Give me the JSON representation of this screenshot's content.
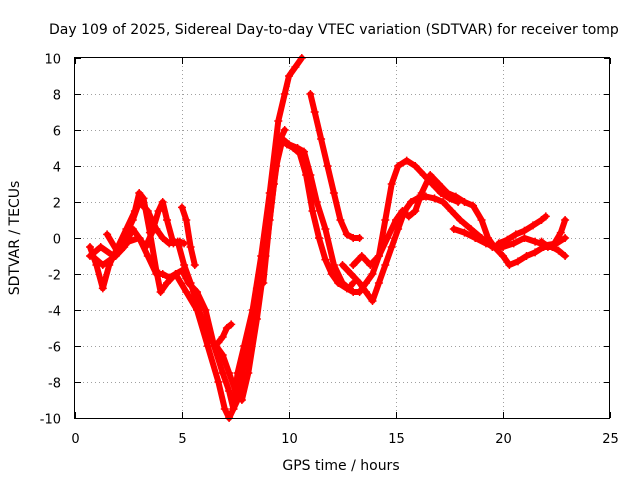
{
  "chart_data": {
    "type": "line",
    "title": "Day 109 of 2025, Sidereal Day-to-day VTEC variation (SDTVAR) for receiver tomp",
    "xlabel": "GPS time / hours",
    "ylabel": "SDTVAR / TECUs",
    "xlim": [
      0,
      25
    ],
    "ylim": [
      -10,
      10
    ],
    "x_ticks": [
      0,
      5,
      10,
      15,
      20,
      25
    ],
    "y_ticks": [
      -10,
      -8,
      -6,
      -4,
      -2,
      0,
      2,
      4,
      6,
      8,
      10
    ],
    "x_tick_labels": [
      "0",
      "5",
      "10",
      "15",
      "20",
      "25"
    ],
    "y_tick_labels": [
      "-10",
      "-8",
      "-6",
      "-4",
      "-2",
      "0",
      "2",
      "4",
      "6",
      "8",
      "10"
    ],
    "grid": true,
    "color": "#ff0000",
    "marker": "plus",
    "series": [
      {
        "name": "trace-1",
        "x": [
          0.7,
          1.0,
          1.3,
          1.6,
          2.0,
          2.4,
          2.8,
          3.0,
          3.2,
          3.5,
          3.8,
          4.0,
          4.3,
          4.7,
          5.2,
          5.7,
          6.2,
          6.7,
          7.0,
          7.2,
          7.4,
          7.6,
          7.9,
          8.3,
          8.7,
          9.1,
          9.5,
          9.8,
          10.0,
          10.3,
          10.6
        ],
        "y": [
          -0.5,
          -1.5,
          -2.8,
          -1.5,
          -0.5,
          0.5,
          1.5,
          2.5,
          2.2,
          0.3,
          -1.8,
          -3.0,
          -2.5,
          -2.0,
          -3.0,
          -4.0,
          -6.0,
          -8.0,
          -9.5,
          -10.0,
          -9.5,
          -7.5,
          -6.0,
          -4.0,
          -1.0,
          2.5,
          6.5,
          8.0,
          9.0,
          9.5,
          10.0
        ]
      },
      {
        "name": "trace-2",
        "x": [
          0.7,
          1.2,
          1.8,
          2.3,
          2.7,
          3.0,
          3.4,
          3.8,
          4.1,
          4.4,
          4.8,
          5.1,
          5.4,
          5.8,
          6.2,
          6.6,
          6.9,
          7.2,
          7.5,
          7.8,
          8.1,
          8.5,
          8.9,
          9.3,
          9.6,
          9.8
        ],
        "y": [
          -1.0,
          -0.5,
          -1.0,
          0.0,
          1.0,
          2.0,
          1.5,
          0.5,
          0.0,
          -0.3,
          -0.2,
          -1.5,
          -2.5,
          -4.0,
          -5.5,
          -6.0,
          -6.5,
          -7.5,
          -8.5,
          -9.0,
          -7.5,
          -4.5,
          -1.0,
          3.0,
          5.5,
          6.0
        ]
      },
      {
        "name": "trace-3",
        "x": [
          0.8,
          1.3,
          1.9,
          2.3,
          2.7,
          3.0,
          3.4,
          3.8,
          4.1,
          4.4,
          4.7,
          5.0,
          5.3,
          5.7,
          6.1,
          6.5,
          6.9,
          7.2,
          7.4,
          7.6,
          7.9,
          8.2,
          8.5,
          8.8,
          9.1,
          9.4,
          9.7,
          10.0,
          10.4,
          10.7,
          11.0,
          11.3,
          11.7,
          12.1,
          12.5,
          12.8,
          13.0
        ],
        "y": [
          -1.0,
          -1.5,
          -1.0,
          -0.5,
          0.5,
          0.0,
          -1.0,
          -2.0,
          -2.0,
          -2.2,
          -2.0,
          -1.8,
          -2.5,
          -3.0,
          -4.0,
          -6.0,
          -7.5,
          -8.5,
          -9.5,
          -9.0,
          -7.0,
          -5.0,
          -2.8,
          -2.5,
          1.0,
          4.0,
          5.5,
          5.2,
          5.0,
          4.8,
          3.5,
          2.0,
          0.5,
          -1.5,
          -2.5,
          -2.8,
          -2.5
        ]
      },
      {
        "name": "trace-4",
        "x": [
          1.5,
          2.0,
          2.5,
          3.0,
          3.3,
          3.6,
          3.9,
          4.1,
          4.3,
          4.6,
          4.9,
          5.1
        ],
        "y": [
          0.2,
          -0.8,
          -0.2,
          0.0,
          -0.5,
          0.3,
          1.5,
          2.0,
          1.0,
          -0.3,
          -0.2,
          -0.3
        ]
      },
      {
        "name": "trace-5",
        "x": [
          5.0,
          5.2,
          5.4,
          5.6
        ],
        "y": [
          1.7,
          1.0,
          -0.5,
          -1.5
        ]
      },
      {
        "name": "trace-6",
        "x": [
          6.7,
          6.9,
          7.1,
          7.3
        ],
        "y": [
          -5.8,
          -5.5,
          -5.0,
          -4.8
        ]
      },
      {
        "name": "trace-7",
        "x": [
          9.6,
          9.9,
          10.2,
          10.5,
          10.8,
          11.1,
          11.4,
          11.7,
          12.0,
          12.3,
          12.7,
          13.0,
          13.3,
          13.6,
          13.9,
          14.2,
          14.5,
          14.8,
          15.1,
          15.5,
          15.9,
          16.3,
          16.7,
          17.1,
          17.5,
          17.9
        ],
        "y": [
          5.5,
          5.2,
          5.0,
          4.7,
          3.5,
          1.5,
          0.0,
          -1.2,
          -2.0,
          -2.5,
          -2.8,
          -3.0,
          -3.0,
          -2.5,
          -2.0,
          -1.0,
          1.0,
          3.0,
          4.0,
          4.3,
          4.0,
          3.5,
          3.0,
          2.5,
          2.2,
          2.0
        ]
      },
      {
        "name": "trace-8",
        "x": [
          11.0,
          11.2,
          11.5,
          11.8,
          12.1,
          12.4,
          12.7,
          13.0,
          13.3
        ],
        "y": [
          8.0,
          7.0,
          5.5,
          4.0,
          2.5,
          1.0,
          0.2,
          0.0,
          0.0
        ]
      },
      {
        "name": "trace-9",
        "x": [
          12.5,
          12.9,
          13.3,
          13.6,
          13.9,
          14.2,
          14.5,
          14.8,
          15.1,
          15.4,
          15.7,
          16.0,
          16.4,
          16.8,
          17.2,
          17.6,
          18.0,
          18.5,
          19.0,
          19.5,
          20.0,
          20.5,
          21.0,
          21.5,
          22.0,
          22.5,
          22.9
        ],
        "y": [
          -1.5,
          -2.0,
          -2.5,
          -3.0,
          -3.5,
          -2.5,
          -1.5,
          -0.5,
          0.5,
          1.5,
          2.0,
          2.2,
          2.3,
          2.2,
          2.0,
          1.5,
          1.0,
          0.5,
          0.0,
          -0.5,
          -0.5,
          -0.3,
          0.0,
          -0.2,
          -0.4,
          -0.3,
          0.0
        ]
      },
      {
        "name": "trace-10",
        "x": [
          13.0,
          13.4,
          13.8,
          14.2,
          14.6,
          15.0,
          15.3,
          15.6,
          15.9,
          16.2,
          16.6,
          17.0,
          17.4,
          17.8,
          18.2,
          18.6,
          19.0,
          19.3,
          19.6,
          19.9
        ],
        "y": [
          -1.5,
          -1.0,
          -1.5,
          -1.0,
          0.0,
          1.0,
          1.5,
          1.2,
          1.5,
          2.5,
          3.5,
          3.0,
          2.5,
          2.3,
          2.0,
          1.8,
          1.0,
          0.0,
          -0.5,
          -0.3
        ]
      },
      {
        "name": "trace-11",
        "x": [
          17.7,
          18.2,
          18.7,
          19.2,
          19.6,
          20.0,
          20.3,
          20.7,
          21.1,
          21.5,
          21.9,
          22.3,
          22.6,
          22.9
        ],
        "y": [
          0.5,
          0.3,
          0.0,
          -0.3,
          -0.5,
          -1.0,
          -1.5,
          -1.3,
          -1.0,
          -0.8,
          -0.5,
          -0.5,
          -0.7,
          -1.0
        ]
      },
      {
        "name": "trace-12",
        "x": [
          19.8,
          20.2,
          20.6,
          21.0,
          21.4,
          21.8,
          22.0
        ],
        "y": [
          -0.3,
          -0.1,
          0.2,
          0.4,
          0.7,
          1.0,
          1.2
        ]
      },
      {
        "name": "trace-13",
        "x": [
          21.8,
          22.1,
          22.4,
          22.7,
          22.9
        ],
        "y": [
          -0.2,
          -0.5,
          -0.3,
          0.3,
          1.0
        ]
      }
    ]
  }
}
